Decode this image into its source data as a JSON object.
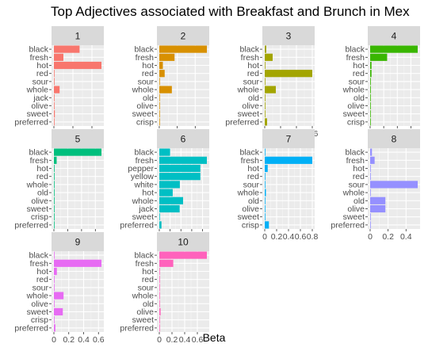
{
  "chart_data": {
    "type": "bar",
    "orientation": "horizontal",
    "title": "Top Adjectives associated with Breakfast and Brunch in Mex",
    "xlabel": "Beta",
    "ylabel": "",
    "facets": [
      {
        "label": "1",
        "color": "#F8766D",
        "terms": [
          "black",
          "fresh",
          "hot",
          "red",
          "sour",
          "whole",
          "jack",
          "olive",
          "sweet",
          "preferred"
        ],
        "values": [
          0.27,
          0.1,
          0.5,
          0.003,
          0.003,
          0.06,
          0.003,
          0.003,
          0.01,
          0.003
        ],
        "ticks": [
          0.0,
          0.2,
          0.4
        ],
        "xlim": [
          -0.025,
          0.525
        ]
      },
      {
        "label": "2",
        "color": "#D89000",
        "terms": [
          "black",
          "fresh",
          "hot",
          "red",
          "sour",
          "whole",
          "old",
          "olive",
          "sweet",
          "crisp"
        ],
        "values": [
          0.53,
          0.17,
          0.04,
          0.06,
          0.003,
          0.14,
          0.003,
          0.003,
          0.003,
          0.003
        ],
        "ticks": [
          0.0,
          0.2,
          0.4
        ],
        "xlim": [
          -0.026,
          0.556
        ]
      },
      {
        "label": "3",
        "color": "#A3A500",
        "terms": [
          "black",
          "fresh",
          "hot",
          "red",
          "sour",
          "whole",
          "old",
          "olive",
          "sweet",
          "preferred"
        ],
        "values": [
          0.02,
          0.1,
          0.005,
          0.6,
          0.003,
          0.14,
          0.003,
          0.003,
          0.003,
          0.03
        ],
        "ticks": [
          0.0,
          0.2,
          0.4,
          0.6
        ],
        "xlim": [
          -0.03,
          0.63
        ]
      },
      {
        "label": "4",
        "color": "#39B600",
        "terms": [
          "black",
          "fresh",
          "hot",
          "red",
          "sour",
          "whole",
          "old",
          "olive",
          "sweet",
          "crisp"
        ],
        "values": [
          0.7,
          0.25,
          0.02,
          0.02,
          0.01,
          0.01,
          0.003,
          0.003,
          0.003,
          0.003
        ],
        "ticks": [
          0.0,
          0.2,
          0.4,
          0.6
        ],
        "xlim": [
          -0.035,
          0.735
        ]
      },
      {
        "label": "5",
        "color": "#00BF7D",
        "terms": [
          "black",
          "fresh",
          "hot",
          "red",
          "whole",
          "old",
          "olive",
          "sweet",
          "crisp",
          "preferred"
        ],
        "values": [
          0.86,
          0.05,
          0.003,
          0.003,
          0.01,
          0.003,
          0.003,
          0.003,
          0.003,
          0.003
        ],
        "ticks": [
          0.0,
          0.25,
          0.5,
          0.75
        ],
        "xlim": [
          -0.043,
          0.903
        ]
      },
      {
        "label": "6",
        "color": "#00BFC4",
        "terms": [
          "black",
          "fresh",
          "pepper",
          "yellow",
          "white",
          "hot",
          "whole",
          "jack",
          "sweet",
          "preferred"
        ],
        "values": [
          0.05,
          0.22,
          0.19,
          0.19,
          0.095,
          0.062,
          0.11,
          0.094,
          0.003,
          0.01
        ],
        "ticks": [
          0.0,
          0.05,
          0.1,
          0.15,
          0.2
        ],
        "xlim": [
          -0.011,
          0.231
        ]
      },
      {
        "label": "7",
        "color": "#00B0F6",
        "terms": [
          "black",
          "fresh",
          "hot",
          "red",
          "sour",
          "whole",
          "old",
          "olive",
          "sweet",
          "crisp"
        ],
        "values": [
          0.003,
          0.8,
          0.05,
          0.003,
          0.003,
          0.02,
          0.003,
          0.003,
          0.003,
          0.07
        ],
        "ticks": [
          0.0,
          0.2,
          0.4,
          0.6,
          0.8
        ],
        "xlim": [
          -0.04,
          0.84
        ]
      },
      {
        "label": "8",
        "color": "#9590FF",
        "terms": [
          "black",
          "fresh",
          "hot",
          "red",
          "sour",
          "whole",
          "old",
          "olive",
          "sweet",
          "preferred"
        ],
        "values": [
          0.02,
          0.05,
          0.003,
          0.003,
          0.53,
          0.003,
          0.17,
          0.17,
          0.003,
          0.003
        ],
        "ticks": [
          0.0,
          0.2,
          0.4
        ],
        "xlim": [
          -0.0265,
          0.5565
        ]
      },
      {
        "label": "9",
        "color": "#E76BF3",
        "terms": [
          "black",
          "fresh",
          "hot",
          "red",
          "sour",
          "whole",
          "olive",
          "sweet",
          "crisp",
          "preferred"
        ],
        "values": [
          0.003,
          0.64,
          0.04,
          0.003,
          0.003,
          0.13,
          0.003,
          0.12,
          0.003,
          0.02
        ],
        "ticks": [
          0.0,
          0.2,
          0.4,
          0.6
        ],
        "xlim": [
          -0.032,
          0.672
        ]
      },
      {
        "label": "10",
        "color": "#FF62BC",
        "terms": [
          "black",
          "fresh",
          "hot",
          "red",
          "sour",
          "whole",
          "old",
          "olive",
          "sweet",
          "preferred"
        ],
        "values": [
          0.75,
          0.22,
          0.01,
          0.003,
          0.003,
          0.003,
          0.003,
          0.02,
          0.003,
          0.003
        ],
        "ticks": [
          0.0,
          0.2,
          0.4,
          0.6
        ],
        "xlim": [
          -0.0375,
          0.7875
        ]
      }
    ]
  }
}
